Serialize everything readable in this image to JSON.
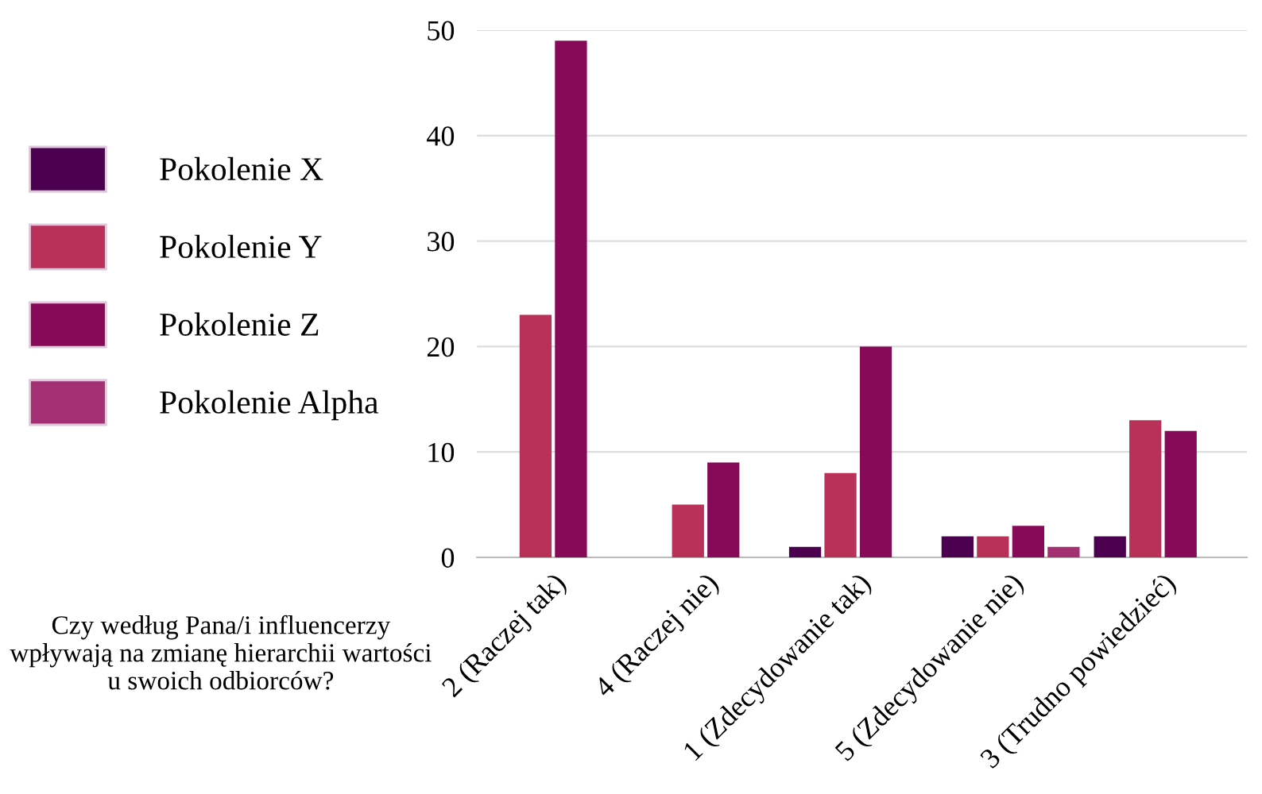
{
  "chart_data": {
    "type": "bar",
    "categories": [
      "2 (Raczej tak)",
      "4 (Raczej nie)",
      "1 (Zdecydowanie tak)",
      "5 (Zdecydowanie nie)",
      "3 (Trudno powiedzieć)"
    ],
    "series": [
      {
        "name": "Pokolenie X",
        "color": "#4b0050",
        "values": [
          0,
          0,
          1,
          2,
          2
        ]
      },
      {
        "name": "Pokolenie Y",
        "color": "#b93059",
        "values": [
          23,
          5,
          8,
          2,
          13
        ]
      },
      {
        "name": "Pokolenie Z",
        "color": "#870a59",
        "values": [
          49,
          9,
          20,
          3,
          12
        ]
      },
      {
        "name": "Pokolenie Alpha",
        "color": "#a23072",
        "values": [
          0,
          0,
          0,
          1,
          0
        ]
      }
    ],
    "ylim": [
      0,
      50
    ],
    "yticks": [
      0,
      10,
      20,
      30,
      40,
      50
    ],
    "grid": "y",
    "legend": "left",
    "annotations": [
      "Czy według Pana/i influencerzy wpływają na zmianę hierarchii wartości u swoich odbiorców?"
    ]
  }
}
